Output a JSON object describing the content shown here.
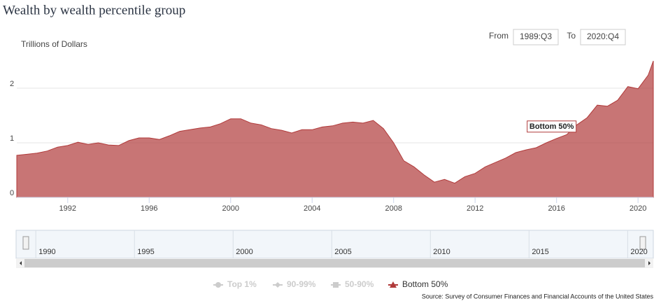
{
  "chart_data": {
    "type": "area",
    "title": "Wealth by wealth percentile group",
    "y_label": "Trillions of Dollars",
    "range_selector": {
      "from_label": "From",
      "from": "1989:Q3",
      "to_label": "To",
      "to": "2020:Q4"
    },
    "source": "Source: Survey of Consumer Finances and Financial Accounts of the United States",
    "tooltip": "Bottom 50%",
    "x": [
      1989.5,
      1990,
      1990.5,
      1991,
      1991.5,
      1992,
      1992.5,
      1993,
      1993.5,
      1994,
      1994.5,
      1995,
      1995.5,
      1996,
      1996.5,
      1997,
      1997.5,
      1998,
      1998.5,
      1999,
      1999.5,
      2000,
      2000.5,
      2001,
      2001.5,
      2002,
      2002.5,
      2003,
      2003.5,
      2004,
      2004.5,
      2005,
      2005.5,
      2006,
      2006.5,
      2007,
      2007.5,
      2008,
      2008.5,
      2009,
      2009.5,
      2010,
      2010.5,
      2011,
      2011.5,
      2012,
      2012.5,
      2013,
      2013.5,
      2014,
      2014.5,
      2015,
      2015.5,
      2016,
      2016.5,
      2017,
      2017.5,
      2018,
      2018.5,
      2019,
      2019.5,
      2020,
      2020.5,
      2020.75
    ],
    "series": [
      {
        "name": "Top 1%",
        "color": "#cccccc",
        "visible": false
      },
      {
        "name": "90-99%",
        "color": "#cccccc",
        "visible": false
      },
      {
        "name": "50-90%",
        "color": "#cccccc",
        "visible": false
      },
      {
        "name": "Bottom 50%",
        "color": "#b03a3a",
        "visible": true,
        "values": [
          0.77,
          0.79,
          0.81,
          0.85,
          0.92,
          0.95,
          1.01,
          0.97,
          1.0,
          0.96,
          0.95,
          1.04,
          1.09,
          1.09,
          1.06,
          1.13,
          1.21,
          1.24,
          1.27,
          1.29,
          1.35,
          1.44,
          1.44,
          1.36,
          1.33,
          1.26,
          1.23,
          1.18,
          1.24,
          1.24,
          1.29,
          1.31,
          1.36,
          1.38,
          1.36,
          1.41,
          1.26,
          1.0,
          0.67,
          0.56,
          0.41,
          0.28,
          0.33,
          0.26,
          0.38,
          0.44,
          0.56,
          0.64,
          0.72,
          0.82,
          0.87,
          0.91,
          1.0,
          1.08,
          1.15,
          1.33,
          1.46,
          1.69,
          1.67,
          1.78,
          2.03,
          1.99,
          2.24,
          2.5
        ]
      }
    ],
    "xlim": [
      1989.5,
      2020.75
    ],
    "xticks": [
      1992,
      1996,
      2000,
      2004,
      2008,
      2012,
      2016,
      2020
    ],
    "ylim": [
      0,
      2.5
    ],
    "yticks": [
      0,
      1,
      2
    ],
    "grid": true,
    "navigator_xlim": [
      1989,
      2021.3
    ],
    "navigator_ticks": [
      1990,
      1995,
      2000,
      2005,
      2010,
      2015,
      2020
    ]
  }
}
